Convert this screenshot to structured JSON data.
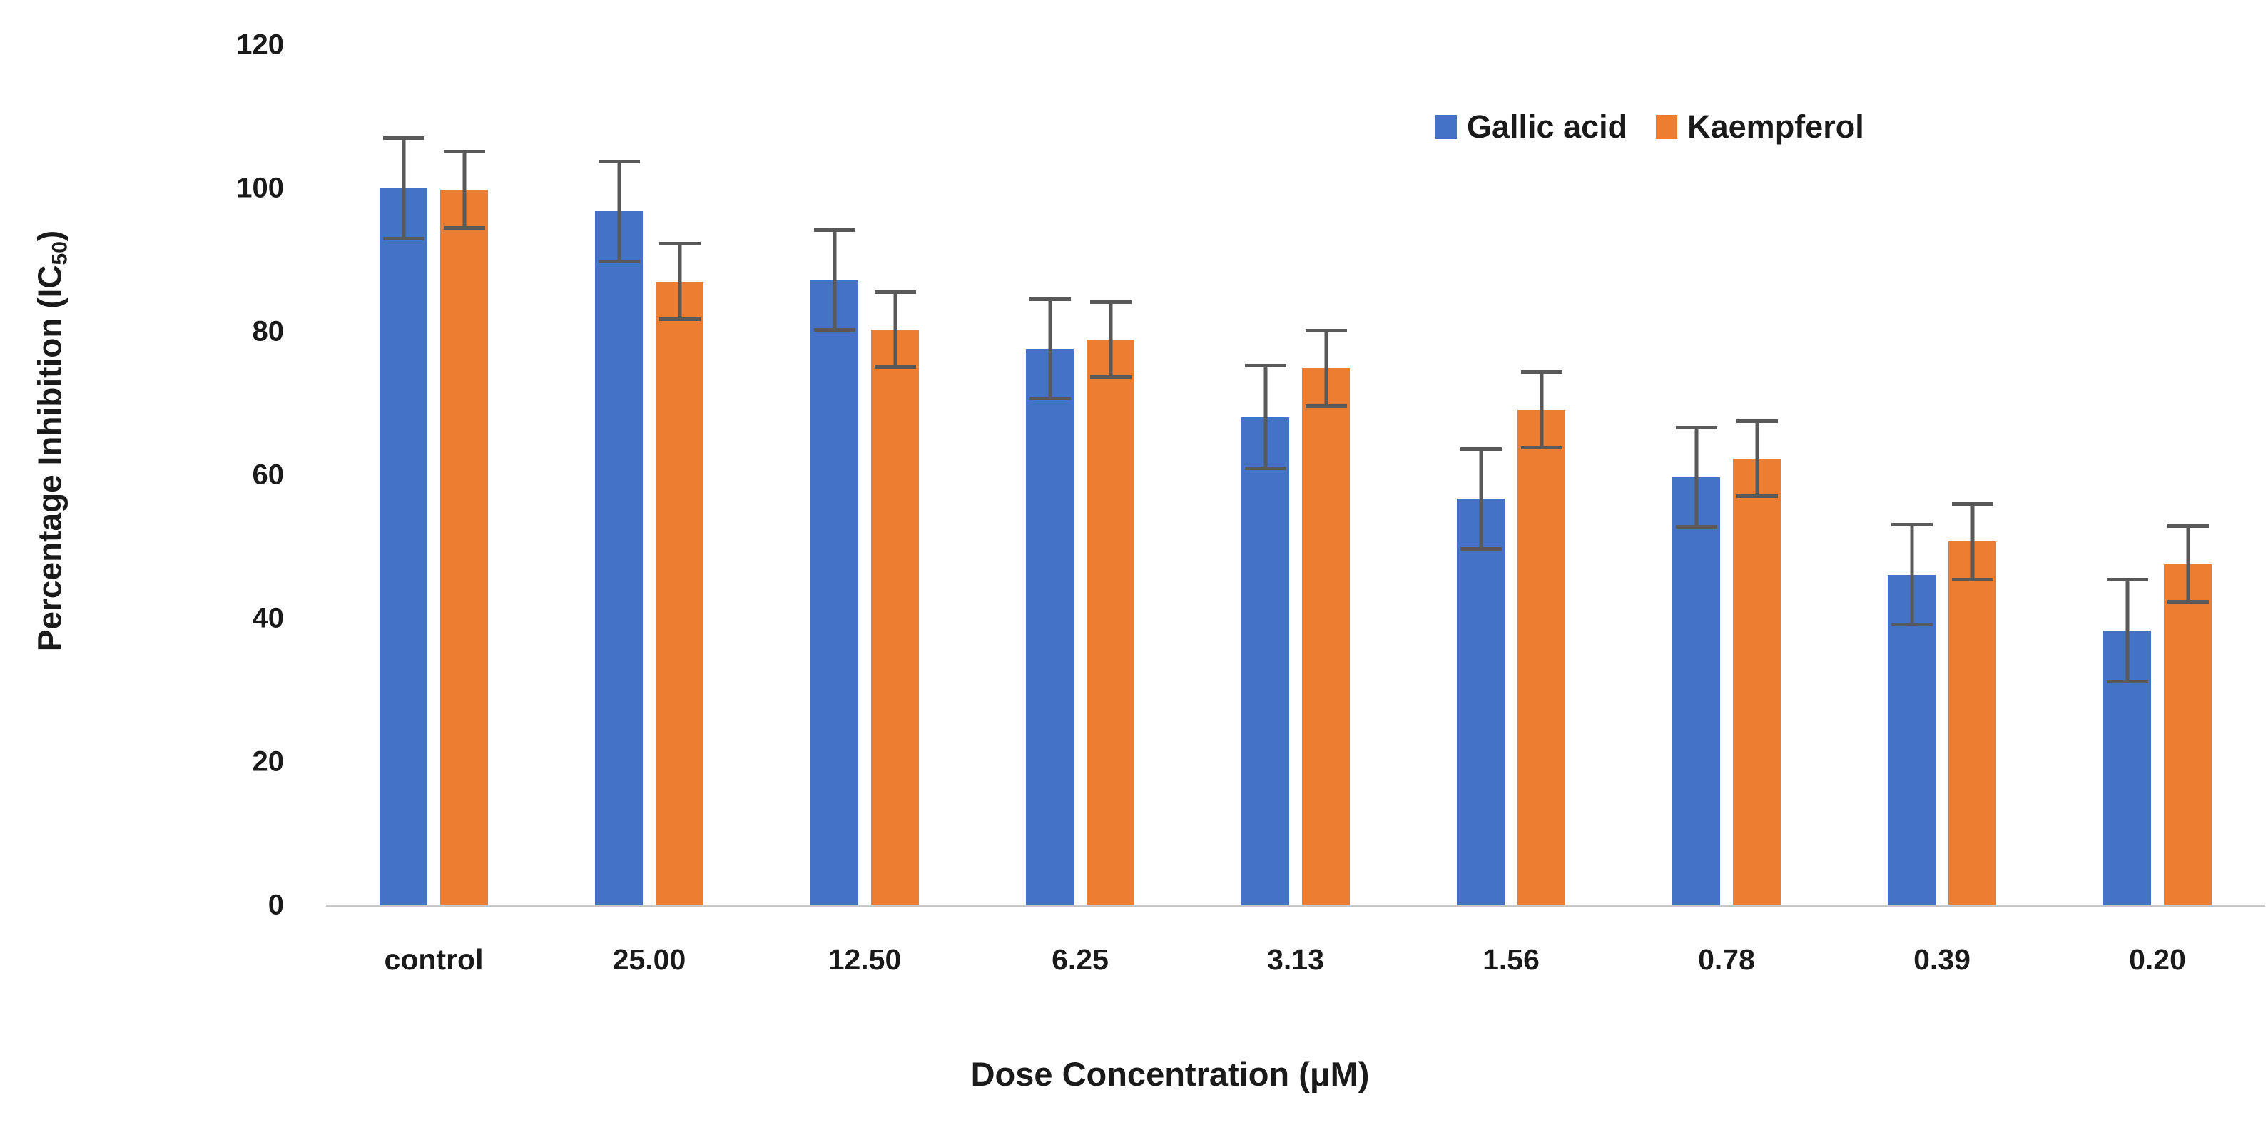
{
  "chart_data": {
    "type": "bar",
    "title": "",
    "xlabel": "Dose Concentration (μM)",
    "ylabel": "Percentage Inhibition (IC₅₀)",
    "ylabel_parts": {
      "prefix": "Percentage Inhibition (IC",
      "sub": "50",
      "suffix": ")"
    },
    "ylim": [
      0,
      120
    ],
    "ytick_interval": 20,
    "yticks": [
      120,
      100,
      80,
      60,
      40,
      20,
      0
    ],
    "grid": false,
    "legend_position": "top-right",
    "categories": [
      "control",
      "25.00",
      "12.50",
      "6.25",
      "3.13",
      "1.56",
      "0.78",
      "0.39",
      "0.20"
    ],
    "series": [
      {
        "name": "Gallic acid",
        "color": "#4472C4",
        "values": [
          100.0,
          96.8,
          87.2,
          77.6,
          68.1,
          56.7,
          59.7,
          46.1,
          38.3
        ],
        "errors": [
          7.3,
          7.2,
          7.2,
          7.2,
          7.4,
          7.2,
          7.2,
          7.2,
          7.4
        ]
      },
      {
        "name": "Kaempferol",
        "color": "#ED7D31",
        "values": [
          99.8,
          87.0,
          80.3,
          78.9,
          74.9,
          69.1,
          62.3,
          50.7,
          47.6
        ],
        "errors": [
          5.6,
          5.5,
          5.5,
          5.5,
          5.5,
          5.5,
          5.5,
          5.5,
          5.5
        ]
      }
    ],
    "error_bar_color": "#595959",
    "axis_line_color": "#C6C6C6",
    "text_color": "#1a1a1a",
    "background_color": "#FFFFFF"
  }
}
